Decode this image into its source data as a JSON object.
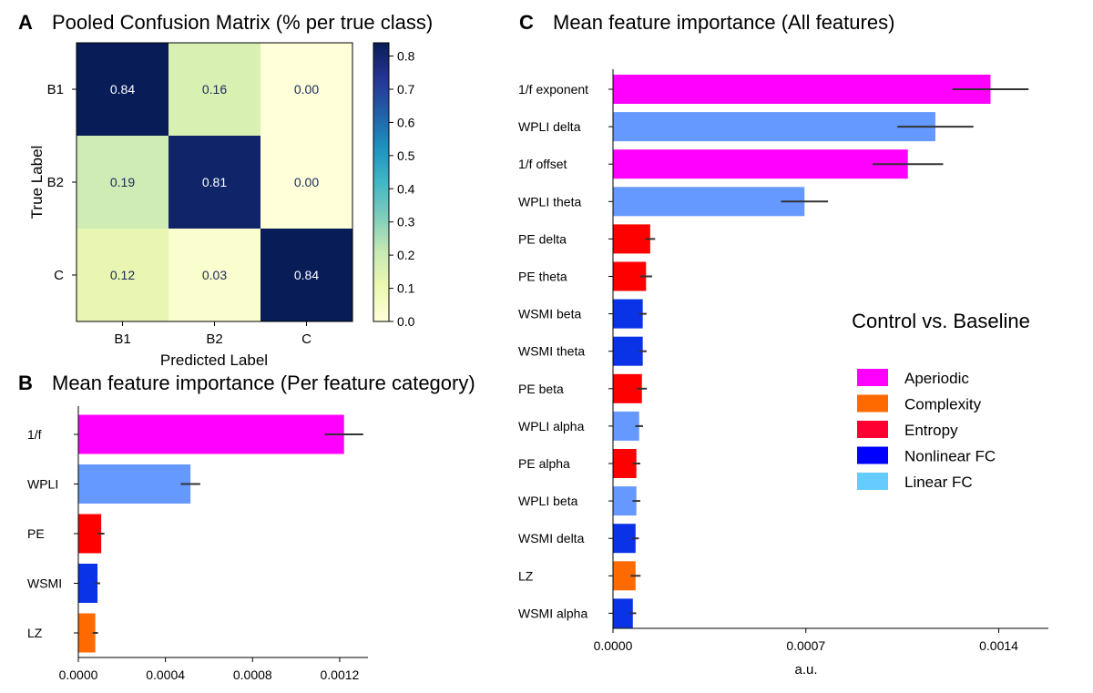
{
  "colors": {
    "aperiodic": "#ff00ff",
    "complexity": "#ff6a00",
    "entropy": "#ff0033",
    "pe_bar": "#ff0000",
    "nonlinear_fc": "#0000ff",
    "nonlinear_fc_bar": "#0a32e6",
    "linear_fc": "#66ccff",
    "linear_fc_bar": "#6699ff",
    "errbar": "#333333"
  },
  "chart_data": [
    {
      "panel": "A",
      "type": "heatmap",
      "title": "Pooled Confusion Matrix (% per true class)",
      "xlabel": "Predicted Label",
      "ylabel": "True Label",
      "x_categories": [
        "B1",
        "B2",
        "C"
      ],
      "y_categories": [
        "B1",
        "B2",
        "C"
      ],
      "values": [
        [
          0.84,
          0.16,
          0.0
        ],
        [
          0.19,
          0.81,
          0.0
        ],
        [
          0.12,
          0.03,
          0.84
        ]
      ],
      "value_labels": [
        [
          "0.84",
          "0.16",
          "0.00"
        ],
        [
          "0.19",
          "0.81",
          "0.00"
        ],
        [
          "0.12",
          "0.03",
          "0.84"
        ]
      ],
      "colorbar": {
        "range": [
          0,
          0.84
        ],
        "ticks": [
          0.0,
          0.1,
          0.2,
          0.3,
          0.4,
          0.5,
          0.6,
          0.7,
          0.8
        ],
        "tick_labels": [
          "0.0",
          "0.1",
          "0.2",
          "0.3",
          "0.4",
          "0.5",
          "0.6",
          "0.7",
          "0.8"
        ],
        "colormap": "YlGnBu"
      }
    },
    {
      "panel": "B",
      "type": "bar",
      "orientation": "horizontal",
      "title": "Mean feature importance (Per feature category)",
      "categories": [
        "1/f",
        "WPLI",
        "PE",
        "WSMI",
        "LZ"
      ],
      "values": [
        0.00122,
        0.000515,
        0.000105,
        8.8e-05,
        7.8e-05
      ],
      "errors": [
        8.8e-05,
        4.5e-05,
        1.5e-05,
        1.2e-05,
        1.2e-05
      ],
      "color_keys": [
        "aperiodic",
        "linear_fc_bar",
        "pe_bar",
        "nonlinear_fc_bar",
        "complexity"
      ],
      "xlim": [
        0,
        0.00133
      ],
      "xticks": [
        0,
        0.0004,
        0.0008,
        0.0012
      ],
      "xtick_labels": [
        "0.0000",
        "0.0004",
        "0.0008",
        "0.0012"
      ]
    },
    {
      "panel": "C",
      "type": "bar",
      "orientation": "horizontal",
      "title": "Mean feature importance (All features)",
      "xlabel": "a.u.",
      "annotation": "Control vs. Baseline",
      "categories": [
        "1/f exponent",
        "WPLI delta",
        "1/f offset",
        "WPLI theta",
        "PE delta",
        "PE theta",
        "WSMI beta",
        "WSMI theta",
        "PE beta",
        "WPLI alpha",
        "PE alpha",
        "WPLI beta",
        "WSMI delta",
        "LZ",
        "WSMI alpha"
      ],
      "values": [
        0.00137,
        0.00117,
        0.00107,
        0.000695,
        0.000135,
        0.00012,
        0.000108,
        0.000108,
        0.000105,
        9.5e-05,
        8.5e-05,
        8.5e-05,
        8.2e-05,
        8.2e-05,
        7.2e-05
      ],
      "errors": [
        0.000138,
        0.000138,
        0.000128,
        8.5e-05,
        1.8e-05,
        2.2e-05,
        1.4e-05,
        1.4e-05,
        1.8e-05,
        1.4e-05,
        1.4e-05,
        1.4e-05,
        1.2e-05,
        1.8e-05,
        1.2e-05
      ],
      "color_keys": [
        "aperiodic",
        "linear_fc_bar",
        "aperiodic",
        "linear_fc_bar",
        "pe_bar",
        "pe_bar",
        "nonlinear_fc_bar",
        "nonlinear_fc_bar",
        "pe_bar",
        "linear_fc_bar",
        "pe_bar",
        "linear_fc_bar",
        "nonlinear_fc_bar",
        "complexity",
        "nonlinear_fc_bar"
      ],
      "xlim": [
        0,
        0.00158
      ],
      "xticks": [
        0,
        0.0007,
        0.0014
      ],
      "xtick_labels": [
        "0.0000",
        "0.0007",
        "0.0014"
      ],
      "legend": {
        "position": "right",
        "entries": [
          {
            "label": "Aperiodic",
            "color_key": "aperiodic"
          },
          {
            "label": "Complexity",
            "color_key": "complexity"
          },
          {
            "label": "Entropy",
            "color_key": "entropy"
          },
          {
            "label": "Nonlinear FC",
            "color_key": "nonlinear_fc"
          },
          {
            "label": "Linear FC",
            "color_key": "linear_fc"
          }
        ]
      }
    }
  ]
}
